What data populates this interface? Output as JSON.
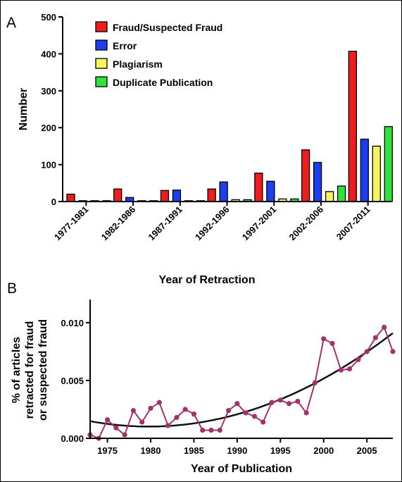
{
  "panels": {
    "a": "A",
    "b": "B"
  },
  "chart_data": [
    {
      "type": "bar",
      "panel": "A",
      "xlabel": "Year of Retraction",
      "ylabel": "Number",
      "ylim": [
        0,
        500
      ],
      "yticks": [
        0,
        100,
        200,
        300,
        400,
        500
      ],
      "categories": [
        "1977-1981",
        "1982-1986",
        "1987-1991",
        "1992-1996",
        "1997-2001",
        "2002-2006",
        "2007-2011"
      ],
      "legend_placement": "top-left",
      "series": [
        {
          "name": "Fraud/Suspected Fraud",
          "color": "#ee1c1c",
          "values": [
            20,
            34,
            30,
            34,
            77,
            140,
            407
          ]
        },
        {
          "name": "Error",
          "color": "#1a3ef0",
          "values": [
            1,
            11,
            31,
            53,
            55,
            106,
            169
          ]
        },
        {
          "name": "Plagiarism",
          "color": "#f6f55a",
          "values": [
            0,
            0,
            0,
            5,
            7,
            27,
            150
          ]
        },
        {
          "name": "Duplicate Publication",
          "color": "#2fe33a",
          "values": [
            0,
            0,
            0,
            5,
            7,
            42,
            203
          ]
        }
      ]
    },
    {
      "type": "line",
      "panel": "B",
      "xlabel": "Year of Publication",
      "ylabel": "% of articles retracted for fraud or suspected fraud",
      "ylabel_lines": [
        "% of articles",
        "retracted for fraud",
        "or suspected fraud"
      ],
      "xlim": [
        1973,
        2008
      ],
      "ylim": [
        0,
        0.012
      ],
      "xticks": [
        1975,
        1980,
        1985,
        1990,
        1995,
        2000,
        2005
      ],
      "yticks": [
        "0.000",
        "0.005",
        "0.010"
      ],
      "ytick_values": [
        0,
        0.005,
        0.01
      ],
      "series_color": "#a2336a",
      "x": [
        1973,
        1974,
        1975,
        1976,
        1977,
        1978,
        1979,
        1980,
        1981,
        1982,
        1983,
        1984,
        1985,
        1986,
        1987,
        1988,
        1989,
        1990,
        1991,
        1992,
        1993,
        1994,
        1995,
        1996,
        1997,
        1998,
        1999,
        2000,
        2001,
        2002,
        2003,
        2004,
        2005,
        2006,
        2007,
        2008
      ],
      "y": [
        0.0003,
        0.0,
        0.0016,
        0.0009,
        0.0003,
        0.0024,
        0.0014,
        0.0026,
        0.0031,
        0.0011,
        0.0018,
        0.0025,
        0.0021,
        0.0007,
        0.0007,
        0.0007,
        0.0024,
        0.003,
        0.0022,
        0.0019,
        0.0014,
        0.0031,
        0.0033,
        0.003,
        0.0032,
        0.0022,
        0.0048,
        0.0086,
        0.0082,
        0.0059,
        0.006,
        0.0068,
        0.0075,
        0.0087,
        0.0096,
        0.0075
      ],
      "trend": {
        "type": "quadratic",
        "x": [
          1973,
          1978,
          1990,
          2008
        ],
        "y": [
          0.00145,
          0.0011,
          0.00205,
          0.0091
        ]
      }
    }
  ]
}
